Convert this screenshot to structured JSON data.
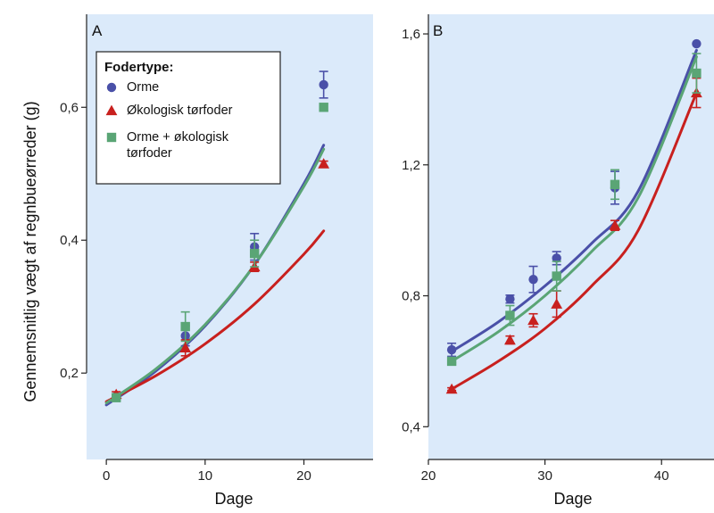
{
  "colors": {
    "panel_bg": "#dbeafa",
    "orme": "#4a50a8",
    "tørfoder": "#c8201e",
    "kombi": "#5aa575"
  },
  "chart_data": [
    {
      "id": "A",
      "type": "scatter",
      "panel_label": "A",
      "xlabel": "Dage",
      "ylabel": "Gennemsnitlig vægt af regnbueørreder (g)",
      "xlim": [
        -2,
        27
      ],
      "ylim": [
        0.07,
        0.74
      ],
      "xticks": [
        0,
        10,
        20
      ],
      "yticks": [
        0.2,
        0.4,
        0.6
      ],
      "ytick_labels": [
        "0,2",
        "0,4",
        "0,6"
      ],
      "legend": {
        "title": "Fodertype:",
        "position": "top-left"
      },
      "series": [
        {
          "name": "Orme",
          "marker": "circle",
          "color": "#4a50a8",
          "points": [
            {
              "x": 1,
              "y": 0.165,
              "err": 0.004
            },
            {
              "x": 8,
              "y": 0.256,
              "err": 0.015
            },
            {
              "x": 15,
              "y": 0.39,
              "err": 0.02
            },
            {
              "x": 22,
              "y": 0.634,
              "err": 0.02
            }
          ],
          "curve": [
            [
              0,
              0.152
            ],
            [
              5,
              0.203
            ],
            [
              10,
              0.271
            ],
            [
              15,
              0.363
            ],
            [
              20,
              0.485
            ],
            [
              22,
              0.543
            ]
          ]
        },
        {
          "name": "Økologisk tørfoder",
          "marker": "triangle",
          "color": "#c8201e",
          "points": [
            {
              "x": 1,
              "y": 0.168,
              "err": 0.004
            },
            {
              "x": 8,
              "y": 0.238,
              "err": 0.012
            },
            {
              "x": 15,
              "y": 0.36,
              "err": 0.007
            },
            {
              "x": 22,
              "y": 0.515,
              "err": 0.004
            }
          ],
          "curve": [
            [
              0,
              0.157
            ],
            [
              5,
              0.196
            ],
            [
              10,
              0.244
            ],
            [
              15,
              0.304
            ],
            [
              20,
              0.379
            ],
            [
              22,
              0.414
            ]
          ]
        },
        {
          "name": "Orme + økologisk tørfoder",
          "marker": "square",
          "color": "#5aa575",
          "points": [
            {
              "x": 1,
              "y": 0.163,
              "err": 0.004
            },
            {
              "x": 8,
              "y": 0.27,
              "err": 0.022
            },
            {
              "x": 15,
              "y": 0.38,
              "err": 0.02
            },
            {
              "x": 22,
              "y": 0.6,
              "err": 0.005
            }
          ],
          "curve": [
            [
              0,
              0.155
            ],
            [
              5,
              0.206
            ],
            [
              10,
              0.273
            ],
            [
              15,
              0.363
            ],
            [
              20,
              0.481
            ],
            [
              22,
              0.537
            ]
          ]
        }
      ]
    },
    {
      "id": "B",
      "type": "scatter",
      "panel_label": "B",
      "xlabel": "Dage",
      "ylabel": "",
      "xlim": [
        20,
        44.5
      ],
      "ylim": [
        0.3,
        1.66
      ],
      "xticks": [
        20,
        30,
        40
      ],
      "yticks": [
        0.4,
        0.8,
        1.2,
        1.6
      ],
      "ytick_labels": [
        "0,4",
        "0,8",
        "1,2",
        "1,6"
      ],
      "series": [
        {
          "name": "Orme",
          "marker": "circle",
          "color": "#4a50a8",
          "points": [
            {
              "x": 22,
              "y": 0.635,
              "err": 0.02
            },
            {
              "x": 27,
              "y": 0.79,
              "err": 0.012
            },
            {
              "x": 29,
              "y": 0.85,
              "err": 0.04
            },
            {
              "x": 31,
              "y": 0.915,
              "err": 0.02
            },
            {
              "x": 36,
              "y": 1.13,
              "err": 0.05
            },
            {
              "x": 43,
              "y": 1.57,
              "err": 0.0
            }
          ],
          "curve": [
            [
              22,
              0.63
            ],
            [
              26,
              0.72
            ],
            [
              30,
              0.83
            ],
            [
              34,
              0.96
            ],
            [
              38,
              1.12
            ],
            [
              43,
              1.55
            ]
          ]
        },
        {
          "name": "Økologisk tørfoder",
          "marker": "triangle",
          "color": "#c8201e",
          "points": [
            {
              "x": 22,
              "y": 0.515,
              "err": 0.004
            },
            {
              "x": 27,
              "y": 0.665,
              "err": 0.012
            },
            {
              "x": 29,
              "y": 0.725,
              "err": 0.02
            },
            {
              "x": 31,
              "y": 0.775,
              "err": 0.04
            },
            {
              "x": 36,
              "y": 1.015,
              "err": 0.015
            },
            {
              "x": 43,
              "y": 1.42,
              "err": 0.045
            }
          ],
          "curve": [
            [
              22,
              0.515
            ],
            [
              26,
              0.6
            ],
            [
              30,
              0.7
            ],
            [
              34,
              0.83
            ],
            [
              38,
              1.0
            ],
            [
              43,
              1.42
            ]
          ]
        },
        {
          "name": "Orme + økologisk tørfoder",
          "marker": "square",
          "color": "#5aa575",
          "points": [
            {
              "x": 22,
              "y": 0.6,
              "err": 0.005
            },
            {
              "x": 27,
              "y": 0.74,
              "err": 0.03
            },
            {
              "x": 31,
              "y": 0.86,
              "err": 0.045
            },
            {
              "x": 36,
              "y": 1.14,
              "err": 0.045
            },
            {
              "x": 43,
              "y": 1.48,
              "err": 0.06
            }
          ],
          "curve": [
            [
              22,
              0.6
            ],
            [
              26,
              0.69
            ],
            [
              30,
              0.8
            ],
            [
              34,
              0.935
            ],
            [
              38,
              1.1
            ],
            [
              43,
              1.53
            ]
          ]
        }
      ]
    }
  ],
  "legend_items": [
    {
      "label": "Orme",
      "label_lines": [
        "Orme"
      ],
      "marker": "circle",
      "color": "#4a50a8"
    },
    {
      "label": "Økologisk tørfoder",
      "label_lines": [
        "Økologisk tørfoder"
      ],
      "marker": "triangle",
      "color": "#c8201e"
    },
    {
      "label": "Orme + økologisk tørfoder",
      "label_lines": [
        "Orme + økologisk",
        "tørfoder"
      ],
      "marker": "square",
      "color": "#5aa575"
    }
  ]
}
